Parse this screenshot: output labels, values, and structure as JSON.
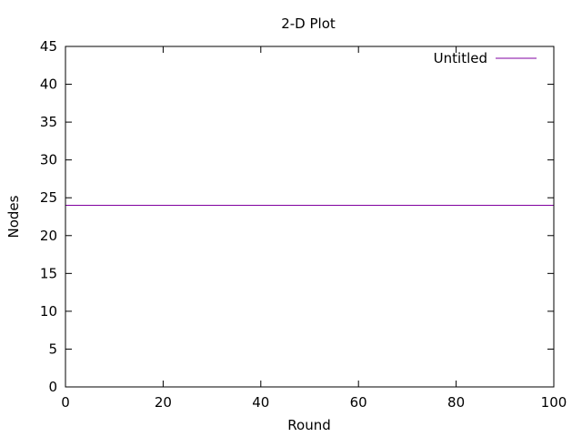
{
  "chart_data": {
    "type": "line",
    "title": "2-D Plot",
    "xlabel": "Round",
    "ylabel": "Nodes",
    "xlim": [
      0,
      100
    ],
    "ylim": [
      0,
      45
    ],
    "xticks": [
      0,
      20,
      40,
      60,
      80,
      100
    ],
    "yticks": [
      0,
      5,
      10,
      15,
      20,
      25,
      30,
      35,
      40,
      45
    ],
    "grid": false,
    "legend_position": "top-right",
    "series": [
      {
        "name": "Untitled",
        "color": "#8000a0",
        "x": [
          0,
          100
        ],
        "y": [
          24,
          24
        ]
      }
    ]
  }
}
